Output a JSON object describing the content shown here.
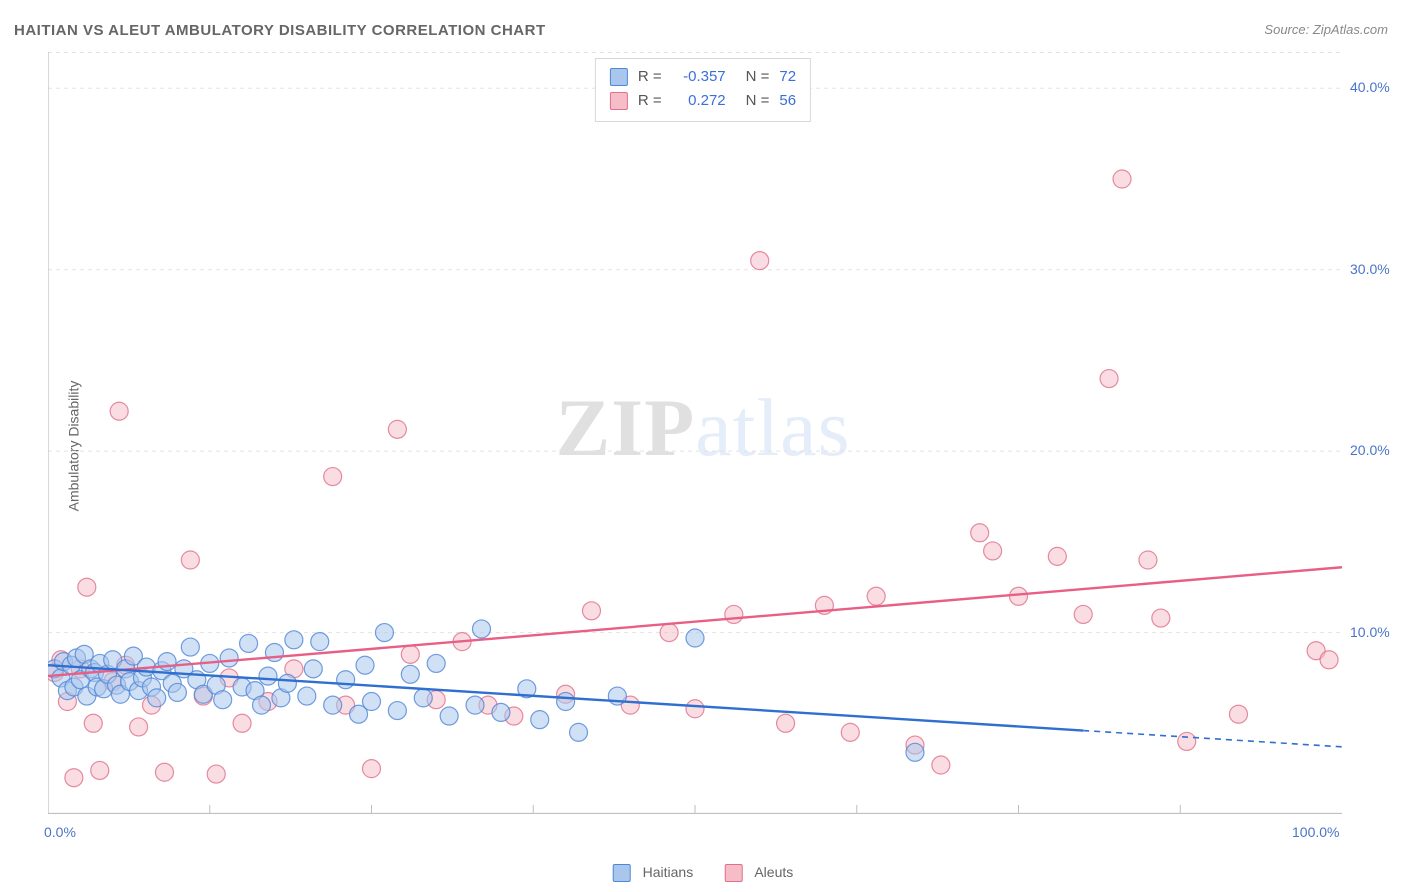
{
  "title": "HAITIAN VS ALEUT AMBULATORY DISABILITY CORRELATION CHART",
  "source_label": "Source:",
  "source_value": "ZipAtlas.com",
  "ylabel": "Ambulatory Disability",
  "watermark": {
    "part1": "ZIP",
    "part2": "atlas"
  },
  "chart": {
    "type": "scatter",
    "background_color": "#ffffff",
    "grid_color": "#e3e3e3",
    "axis_color": "#bfbfbf",
    "tick_label_color": "#4a74c9",
    "xlim": [
      0,
      100
    ],
    "ylim": [
      0,
      42
    ],
    "y_ticks": [
      10,
      20,
      30,
      40
    ],
    "y_tick_labels": [
      "10.0%",
      "20.0%",
      "30.0%",
      "40.0%"
    ],
    "x_tick_positions": [
      0,
      100
    ],
    "x_tick_labels": [
      "0.0%",
      "100.0%"
    ],
    "x_minor_ticks": [
      12.5,
      25,
      37.5,
      50,
      62.5,
      75,
      87.5
    ],
    "marker_radius": 9,
    "marker_stroke_width": 1.2,
    "trend_line_width": 2.4,
    "series": {
      "haitians": {
        "label": "Haitians",
        "fill": "#a9c7ec",
        "fill_opacity": 0.55,
        "stroke": "#4f86d6",
        "trend_color": "#2f6fd0",
        "trend": {
          "x1": 0,
          "y1": 8.2,
          "x2": 80,
          "y2": 4.6,
          "dash_x2": 100,
          "dash_y2": 3.7
        },
        "points": [
          [
            0.5,
            8.0
          ],
          [
            1,
            7.5
          ],
          [
            1.2,
            8.4
          ],
          [
            1.5,
            6.8
          ],
          [
            1.8,
            8.2
          ],
          [
            2,
            7.0
          ],
          [
            2.2,
            8.6
          ],
          [
            2.5,
            7.4
          ],
          [
            2.8,
            8.8
          ],
          [
            3,
            6.5
          ],
          [
            3.3,
            8.0
          ],
          [
            3.6,
            7.8
          ],
          [
            3.8,
            7.0
          ],
          [
            4,
            8.3
          ],
          [
            4.3,
            6.9
          ],
          [
            4.6,
            7.7
          ],
          [
            5,
            8.5
          ],
          [
            5.3,
            7.1
          ],
          [
            5.6,
            6.6
          ],
          [
            6,
            8.0
          ],
          [
            6.3,
            7.3
          ],
          [
            6.6,
            8.7
          ],
          [
            7,
            6.8
          ],
          [
            7.3,
            7.5
          ],
          [
            7.6,
            8.1
          ],
          [
            8,
            7.0
          ],
          [
            8.4,
            6.4
          ],
          [
            8.8,
            7.9
          ],
          [
            9.2,
            8.4
          ],
          [
            9.6,
            7.2
          ],
          [
            10,
            6.7
          ],
          [
            10.5,
            8.0
          ],
          [
            11,
            9.2
          ],
          [
            11.5,
            7.4
          ],
          [
            12,
            6.6
          ],
          [
            12.5,
            8.3
          ],
          [
            13,
            7.1
          ],
          [
            13.5,
            6.3
          ],
          [
            14,
            8.6
          ],
          [
            15,
            7.0
          ],
          [
            15.5,
            9.4
          ],
          [
            16,
            6.8
          ],
          [
            16.5,
            6.0
          ],
          [
            17,
            7.6
          ],
          [
            17.5,
            8.9
          ],
          [
            18,
            6.4
          ],
          [
            18.5,
            7.2
          ],
          [
            19,
            9.6
          ],
          [
            20,
            6.5
          ],
          [
            20.5,
            8.0
          ],
          [
            21,
            9.5
          ],
          [
            22,
            6.0
          ],
          [
            23,
            7.4
          ],
          [
            24,
            5.5
          ],
          [
            24.5,
            8.2
          ],
          [
            25,
            6.2
          ],
          [
            26,
            10.0
          ],
          [
            27,
            5.7
          ],
          [
            28,
            7.7
          ],
          [
            29,
            6.4
          ],
          [
            30,
            8.3
          ],
          [
            31,
            5.4
          ],
          [
            33,
            6.0
          ],
          [
            33.5,
            10.2
          ],
          [
            35,
            5.6
          ],
          [
            37,
            6.9
          ],
          [
            38,
            5.2
          ],
          [
            40,
            6.2
          ],
          [
            41,
            4.5
          ],
          [
            44,
            6.5
          ],
          [
            50,
            9.7
          ],
          [
            67,
            3.4
          ]
        ]
      },
      "aleuts": {
        "label": "Aleuts",
        "fill": "#f6bcc8",
        "fill_opacity": 0.5,
        "stroke": "#e06f8a",
        "trend_color": "#e85f86",
        "trend": {
          "x1": 0,
          "y1": 7.6,
          "x2": 100,
          "y2": 13.6
        },
        "points": [
          [
            0.5,
            7.8
          ],
          [
            1,
            8.5
          ],
          [
            1.5,
            6.2
          ],
          [
            2,
            2.0
          ],
          [
            2.5,
            8.0
          ],
          [
            3,
            12.5
          ],
          [
            3.5,
            5.0
          ],
          [
            4,
            2.4
          ],
          [
            5,
            7.3
          ],
          [
            5.5,
            22.2
          ],
          [
            6,
            8.2
          ],
          [
            7,
            4.8
          ],
          [
            8,
            6.0
          ],
          [
            9,
            2.3
          ],
          [
            11,
            14.0
          ],
          [
            12,
            6.5
          ],
          [
            13,
            2.2
          ],
          [
            14,
            7.5
          ],
          [
            15,
            5.0
          ],
          [
            17,
            6.2
          ],
          [
            19,
            8.0
          ],
          [
            22,
            18.6
          ],
          [
            23,
            6.0
          ],
          [
            25,
            2.5
          ],
          [
            27,
            21.2
          ],
          [
            28,
            8.8
          ],
          [
            30,
            6.3
          ],
          [
            32,
            9.5
          ],
          [
            34,
            6.0
          ],
          [
            36,
            5.4
          ],
          [
            40,
            6.6
          ],
          [
            42,
            11.2
          ],
          [
            45,
            6.0
          ],
          [
            48,
            10.0
          ],
          [
            50,
            5.8
          ],
          [
            53,
            11.0
          ],
          [
            55,
            30.5
          ],
          [
            57,
            5.0
          ],
          [
            60,
            11.5
          ],
          [
            62,
            4.5
          ],
          [
            64,
            12.0
          ],
          [
            67,
            3.8
          ],
          [
            69,
            2.7
          ],
          [
            72,
            15.5
          ],
          [
            73,
            14.5
          ],
          [
            75,
            12.0
          ],
          [
            78,
            14.2
          ],
          [
            80,
            11.0
          ],
          [
            82,
            24.0
          ],
          [
            83,
            35.0
          ],
          [
            85,
            14.0
          ],
          [
            86,
            10.8
          ],
          [
            88,
            4.0
          ],
          [
            92,
            5.5
          ],
          [
            98,
            9.0
          ],
          [
            99,
            8.5
          ]
        ]
      }
    },
    "stats": [
      {
        "series": "haitians",
        "R": "-0.357",
        "N": "72"
      },
      {
        "series": "aleuts",
        "R": "0.272",
        "N": "56"
      }
    ]
  }
}
